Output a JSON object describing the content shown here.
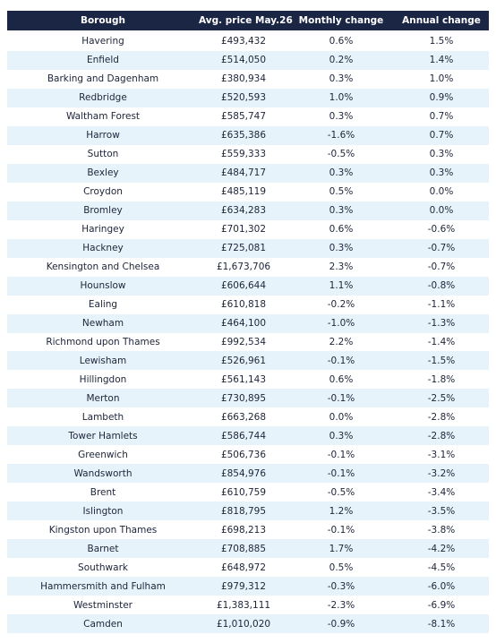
{
  "table": {
    "headers": [
      "Borough",
      "Avg. price May.26",
      "Monthly change",
      "Annual change"
    ],
    "rows": [
      [
        "Havering",
        "£493,432",
        "0.6%",
        "1.5%"
      ],
      [
        "Enfield",
        "£514,050",
        "0.2%",
        "1.4%"
      ],
      [
        "Barking and Dagenham",
        "£380,934",
        "0.3%",
        "1.0%"
      ],
      [
        "Redbridge",
        "£520,593",
        "1.0%",
        "0.9%"
      ],
      [
        "Waltham Forest",
        "£585,747",
        "0.3%",
        "0.7%"
      ],
      [
        "Harrow",
        "£635,386",
        "-1.6%",
        "0.7%"
      ],
      [
        "Sutton",
        "£559,333",
        "-0.5%",
        "0.3%"
      ],
      [
        "Bexley",
        "£484,717",
        "0.3%",
        "0.3%"
      ],
      [
        "Croydon",
        "£485,119",
        "0.5%",
        "0.0%"
      ],
      [
        "Bromley",
        "£634,283",
        "0.3%",
        "0.0%"
      ],
      [
        "Haringey",
        "£701,302",
        "0.6%",
        "-0.6%"
      ],
      [
        "Hackney",
        "£725,081",
        "0.3%",
        "-0.7%"
      ],
      [
        "Kensington and Chelsea",
        "£1,673,706",
        "2.3%",
        "-0.7%"
      ],
      [
        "Hounslow",
        "£606,644",
        "1.1%",
        "-0.8%"
      ],
      [
        "Ealing",
        "£610,818",
        "-0.2%",
        "-1.1%"
      ],
      [
        "Newham",
        "£464,100",
        "-1.0%",
        "-1.3%"
      ],
      [
        "Richmond upon Thames",
        "£992,534",
        "2.2%",
        "-1.4%"
      ],
      [
        "Lewisham",
        "£526,961",
        "-0.1%",
        "-1.5%"
      ],
      [
        "Hillingdon",
        "£561,143",
        "0.6%",
        "-1.8%"
      ],
      [
        "Merton",
        "£730,895",
        "-0.1%",
        "-2.5%"
      ],
      [
        "Lambeth",
        "£663,268",
        "0.0%",
        "-2.8%"
      ],
      [
        "Tower Hamlets",
        "£586,744",
        "0.3%",
        "-2.8%"
      ],
      [
        "Greenwich",
        "£506,736",
        "-0.1%",
        "-3.1%"
      ],
      [
        "Wandsworth",
        "£854,976",
        "-0.1%",
        "-3.2%"
      ],
      [
        "Brent",
        "£610,759",
        "-0.5%",
        "-3.4%"
      ],
      [
        "Islington",
        "£818,795",
        "1.2%",
        "-3.5%"
      ],
      [
        "Kingston upon Thames",
        "£698,213",
        "-0.1%",
        "-3.8%"
      ],
      [
        "Barnet",
        "£708,885",
        "1.7%",
        "-4.2%"
      ],
      [
        "Southwark",
        "£648,972",
        "0.5%",
        "-4.5%"
      ],
      [
        "Hammersmith and Fulham",
        "£979,312",
        "-0.3%",
        "-6.0%"
      ],
      [
        "Westminster",
        "£1,383,111",
        "-2.3%",
        "-6.9%"
      ],
      [
        "Camden",
        "£1,010,020",
        "-0.9%",
        "-8.1%"
      ]
    ]
  }
}
